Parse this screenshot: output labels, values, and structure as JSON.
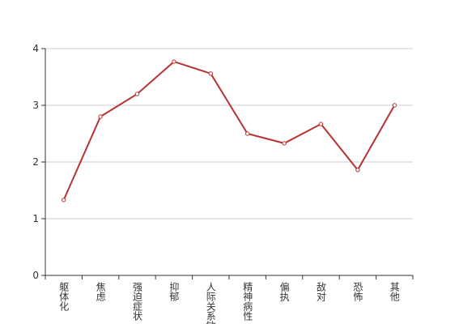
{
  "chart_data": {
    "type": "line",
    "categories": [
      "躯体化",
      "焦虑",
      "强迫症状",
      "抑郁",
      "人际关系敏感",
      "精神病性",
      "偏执",
      "敌对",
      "恐怖",
      "其他"
    ],
    "series": [
      {
        "name": null,
        "color": "#b83232",
        "values": [
          1.33,
          2.8,
          3.2,
          3.77,
          3.56,
          2.5,
          2.33,
          2.67,
          1.86,
          3.0
        ]
      }
    ],
    "ylim": [
      0,
      4
    ],
    "yticks": [
      0,
      1,
      2,
      3,
      4
    ],
    "grid": true
  }
}
